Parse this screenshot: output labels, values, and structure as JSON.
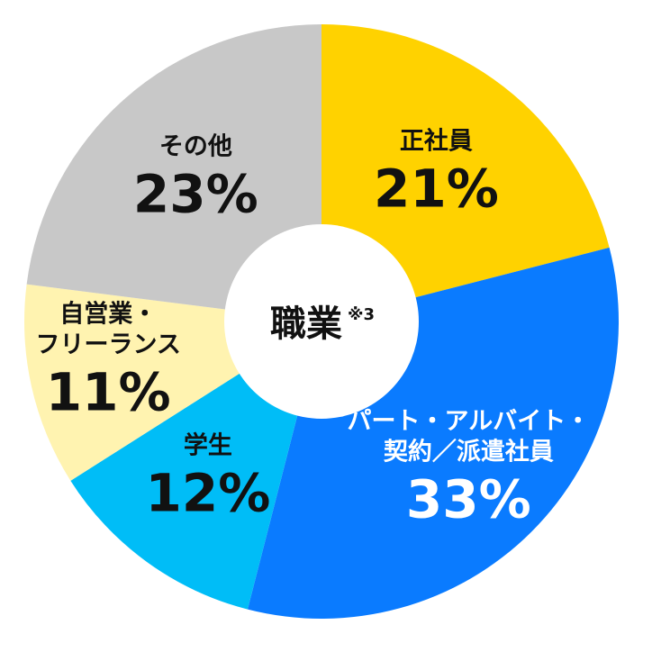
{
  "chart_data": {
    "type": "pie",
    "donut": true,
    "center_title": "職業",
    "center_note": "※3",
    "segments": [
      {
        "label_lines": [
          "正社員"
        ],
        "value": 21,
        "value_label": "21%",
        "color": "#FFD200",
        "text_color": "#111111"
      },
      {
        "label_lines": [
          "パート・アルバイト・",
          "契約／派遣社員"
        ],
        "value": 33,
        "value_label": "33%",
        "color": "#0A7BFF",
        "text_color": "#ffffff"
      },
      {
        "label_lines": [
          "学生"
        ],
        "value": 12,
        "value_label": "12%",
        "color": "#00BDF7",
        "text_color": "#111111"
      },
      {
        "label_lines": [
          "自営業・",
          "フリーランス"
        ],
        "value": 11,
        "value_label": "11%",
        "color": "#FFF3B0",
        "text_color": "#111111"
      },
      {
        "label_lines": [
          "その他"
        ],
        "value": 23,
        "value_label": "23%",
        "color": "#C8C8C8",
        "text_color": "#111111"
      }
    ]
  }
}
